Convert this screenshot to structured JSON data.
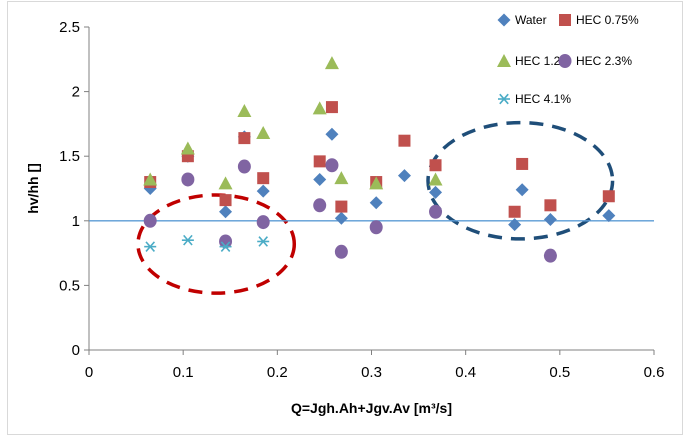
{
  "chart_data": {
    "type": "scatter",
    "xlabel": "Q=Jgh.Ah+Jgv.Av [m³/s]",
    "ylabel": "hv/hh []",
    "xlim": [
      0,
      0.6
    ],
    "ylim": [
      0,
      2.5
    ],
    "x_ticks": [
      "0",
      "0.1",
      "0.2",
      "0.3",
      "0.4",
      "0.5",
      "0.6"
    ],
    "y_ticks": [
      "0",
      "0.5",
      "1",
      "1.5",
      "2",
      "2.5"
    ],
    "grid": false,
    "legend_position": "top-right",
    "reference_line": {
      "y": 1,
      "color": "#5b9bd5"
    },
    "series": [
      {
        "name": "Water",
        "marker": "diamond",
        "color": "#4f81bd",
        "points": [
          [
            0.065,
            1.25
          ],
          [
            0.105,
            1.5
          ],
          [
            0.145,
            1.07
          ],
          [
            0.165,
            1.65
          ],
          [
            0.185,
            1.23
          ],
          [
            0.245,
            1.32
          ],
          [
            0.258,
            1.67
          ],
          [
            0.268,
            1.02
          ],
          [
            0.305,
            1.14
          ],
          [
            0.335,
            1.35
          ],
          [
            0.368,
            1.22
          ],
          [
            0.452,
            0.97
          ],
          [
            0.46,
            1.24
          ],
          [
            0.49,
            1.01
          ],
          [
            0.552,
            1.04
          ]
        ]
      },
      {
        "name": "HEC 0.75%",
        "marker": "square",
        "color": "#c0504d",
        "points": [
          [
            0.065,
            1.3
          ],
          [
            0.105,
            1.5
          ],
          [
            0.145,
            1.16
          ],
          [
            0.165,
            1.64
          ],
          [
            0.185,
            1.33
          ],
          [
            0.245,
            1.46
          ],
          [
            0.258,
            1.88
          ],
          [
            0.268,
            1.11
          ],
          [
            0.305,
            1.3
          ],
          [
            0.335,
            1.62
          ],
          [
            0.368,
            1.43
          ],
          [
            0.452,
            1.07
          ],
          [
            0.46,
            1.44
          ],
          [
            0.49,
            1.12
          ],
          [
            0.552,
            1.19
          ]
        ]
      },
      {
        "name": "HEC 1.2%",
        "marker": "triangle",
        "color": "#9bbb59",
        "points": [
          [
            0.065,
            1.32
          ],
          [
            0.105,
            1.56
          ],
          [
            0.145,
            1.29
          ],
          [
            0.165,
            1.85
          ],
          [
            0.185,
            1.68
          ],
          [
            0.245,
            1.87
          ],
          [
            0.258,
            2.22
          ],
          [
            0.268,
            1.33
          ],
          [
            0.305,
            1.29
          ],
          [
            0.368,
            1.32
          ]
        ]
      },
      {
        "name": "HEC 2.3%",
        "marker": "circle",
        "color": "#8064a2",
        "points": [
          [
            0.065,
            1.0
          ],
          [
            0.105,
            1.32
          ],
          [
            0.145,
            0.84
          ],
          [
            0.165,
            1.42
          ],
          [
            0.185,
            0.99
          ],
          [
            0.245,
            1.12
          ],
          [
            0.258,
            1.43
          ],
          [
            0.268,
            0.76
          ],
          [
            0.305,
            0.95
          ],
          [
            0.368,
            1.07
          ],
          [
            0.49,
            0.73
          ]
        ]
      },
      {
        "name": "HEC 4.1%",
        "marker": "asterisk",
        "color": "#4bacc6",
        "points": [
          [
            0.065,
            0.8
          ],
          [
            0.105,
            0.85
          ],
          [
            0.145,
            0.8
          ],
          [
            0.185,
            0.84
          ]
        ]
      }
    ],
    "annotations": [
      {
        "shape": "dashed-ellipse",
        "color": "#c00000",
        "center": [
          0.135,
          0.82
        ],
        "radii": [
          0.083,
          0.38
        ]
      },
      {
        "shape": "dashed-ellipse",
        "color": "#1f4e79",
        "center": [
          0.458,
          1.31
        ],
        "radii": [
          0.098,
          0.45
        ]
      }
    ]
  }
}
